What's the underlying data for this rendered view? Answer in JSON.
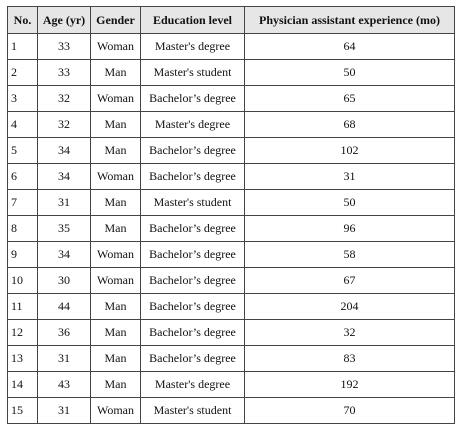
{
  "table": {
    "columns": [
      "No.",
      "Age (yr)",
      "Gender",
      "Education level",
      "Physician assistant experience (mo)"
    ],
    "rows": [
      [
        1,
        33,
        "Woman",
        "Master's degree",
        64
      ],
      [
        2,
        33,
        "Man",
        "Master's student",
        50
      ],
      [
        3,
        32,
        "Woman",
        "Bachelor’s degree",
        65
      ],
      [
        4,
        32,
        "Man",
        "Master's degree",
        68
      ],
      [
        5,
        34,
        "Man",
        "Bachelor’s degree",
        102
      ],
      [
        6,
        34,
        "Woman",
        "Bachelor’s degree",
        31
      ],
      [
        7,
        31,
        "Man",
        "Master's student",
        50
      ],
      [
        8,
        35,
        "Man",
        "Bachelor’s degree",
        96
      ],
      [
        9,
        34,
        "Woman",
        "Bachelor’s degree",
        58
      ],
      [
        10,
        30,
        "Woman",
        "Bachelor’s degree",
        67
      ],
      [
        11,
        44,
        "Man",
        "Bachelor’s degree",
        204
      ],
      [
        12,
        36,
        "Man",
        "Bachelor’s degree",
        32
      ],
      [
        13,
        31,
        "Man",
        "Bachelor’s degree",
        83
      ],
      [
        14,
        43,
        "Man",
        "Master's degree",
        192
      ],
      [
        15,
        31,
        "Woman",
        "Master's student",
        70
      ]
    ]
  }
}
